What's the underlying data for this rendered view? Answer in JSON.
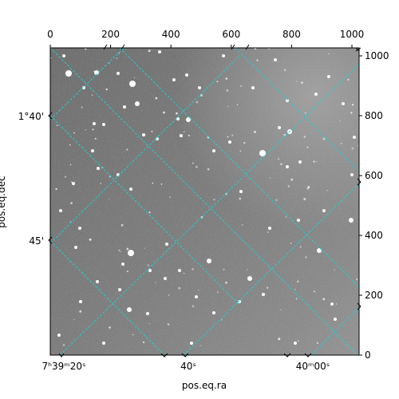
{
  "figure": {
    "xlabel": "pos.eq.ra",
    "ylabel": "pos.eq.dec",
    "pixel_x_ticks": [
      "0",
      "200",
      "400",
      "600",
      "800",
      "1000"
    ],
    "pixel_y_ticks": [
      "0",
      "200",
      "400",
      "600",
      "800",
      "1000"
    ],
    "ra_ticks": [
      "7ʰ39ᵐ20ˢ",
      "40ˢ",
      "40ᵐ00ˢ"
    ],
    "dec_ticks": [
      "1°40'",
      "45'"
    ],
    "grid_color": "#20d0d0",
    "image_style": "grayscale star field"
  }
}
